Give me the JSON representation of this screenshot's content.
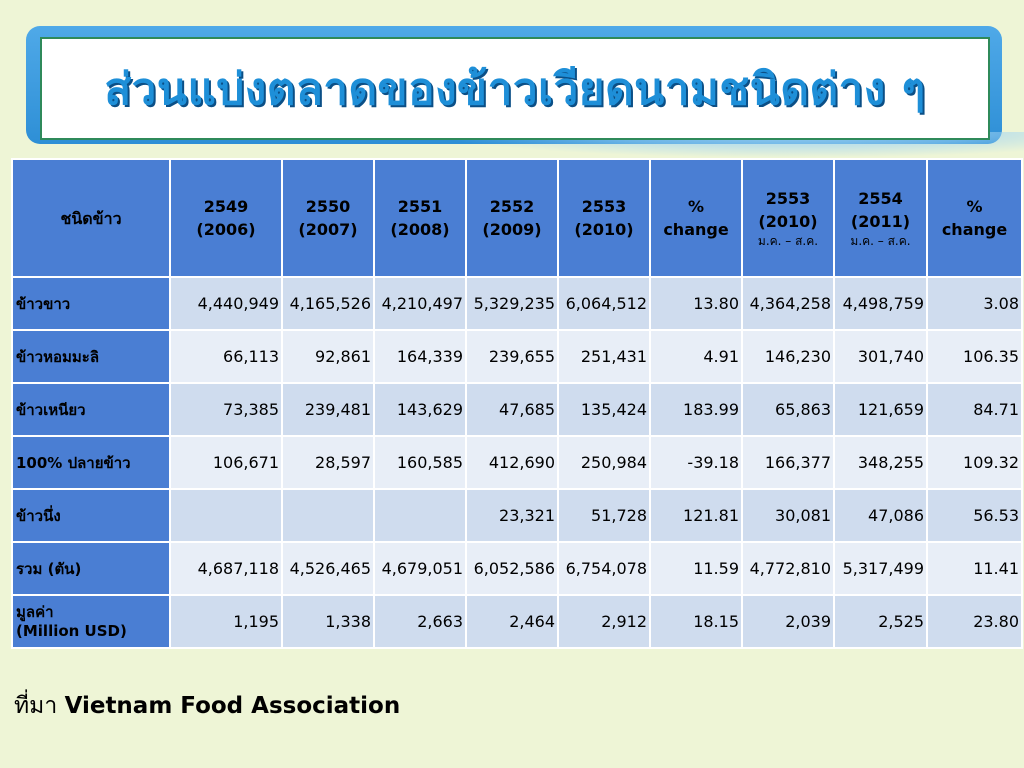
{
  "title": "ส่วนแบ่งตลาดของข้าวเวียดนามชนิดต่าง ๆ",
  "table": {
    "header": {
      "type": "ชนิดข้าว",
      "cols": [
        {
          "line1": "2549",
          "line2": "(2006)",
          "sub": ""
        },
        {
          "line1": "2550",
          "line2": "(2007)",
          "sub": ""
        },
        {
          "line1": "2551",
          "line2": "(2008)",
          "sub": ""
        },
        {
          "line1": "2552",
          "line2": "(2009)",
          "sub": ""
        },
        {
          "line1": "2553",
          "line2": "(2010)",
          "sub": ""
        },
        {
          "line1": "%",
          "line2": "change",
          "sub": ""
        },
        {
          "line1": "2553",
          "line2": "(2010)",
          "sub": "ม.ค. – ส.ค."
        },
        {
          "line1": "2554",
          "line2": "(2011)",
          "sub": "ม.ค. – ส.ค."
        },
        {
          "line1": "%",
          "line2": "change",
          "sub": ""
        }
      ]
    },
    "rows": [
      {
        "label": "ข้าวขาว",
        "label2": "",
        "values": [
          "4,440,949",
          "4,165,526",
          "4,210,497",
          "5,329,235",
          "6,064,512",
          "13.80",
          "4,364,258",
          "4,498,759",
          "3.08"
        ]
      },
      {
        "label": "ข้าวหอมมะลิ",
        "label2": "",
        "values": [
          "66,113",
          "92,861",
          "164,339",
          "239,655",
          "251,431",
          "4.91",
          "146,230",
          "301,740",
          "106.35"
        ]
      },
      {
        "label": "ข้าวเหนียว",
        "label2": "",
        "values": [
          "73,385",
          "239,481",
          "143,629",
          "47,685",
          "135,424",
          "183.99",
          "65,863",
          "121,659",
          "84.71"
        ]
      },
      {
        "label": "100% ปลายข้าว",
        "label2": "",
        "values": [
          "106,671",
          "28,597",
          "160,585",
          "412,690",
          "250,984",
          "-39.18",
          "166,377",
          "348,255",
          "109.32"
        ]
      },
      {
        "label": "ข้าวนึ่ง",
        "label2": "",
        "values": [
          "",
          "",
          "",
          "23,321",
          "51,728",
          "121.81",
          "30,081",
          "47,086",
          "56.53"
        ]
      },
      {
        "label": "รวม (ตัน)",
        "label2": "",
        "values": [
          "4,687,118",
          "4,526,465",
          "4,679,051",
          "6,052,586",
          "6,754,078",
          "11.59",
          "4,772,810",
          "5,317,499",
          "11.41"
        ]
      },
      {
        "label": "มูลค่า",
        "label2": "(Million USD)",
        "values": [
          "1,195",
          "1,338",
          "2,663",
          "2,464",
          "2,912",
          "18.15",
          "2,039",
          "2,525",
          "23.80"
        ]
      }
    ]
  },
  "source": {
    "prefix": "ที่มา",
    "name": "Vietnam Food Association"
  },
  "colors": {
    "header_bg": "#4a7ed3",
    "row_dark": "#cfdcee",
    "row_light": "#e8eef7",
    "title": "#1e8fd8",
    "background": "#eef5d6"
  }
}
